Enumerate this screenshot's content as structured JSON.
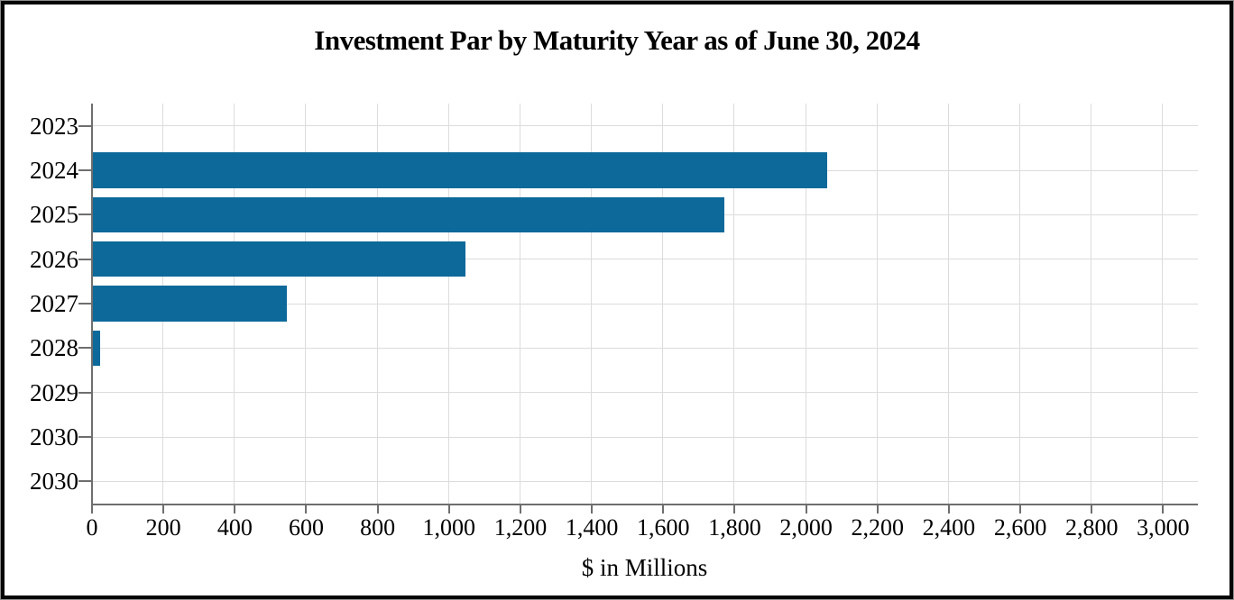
{
  "title": "Investment Par by Maturity Year as of June 30, 2024",
  "chart_data": {
    "type": "bar",
    "orientation": "horizontal",
    "title": "Investment Par by Maturity Year as of June 30, 2024",
    "xlabel": "$ in Millions",
    "ylabel": "",
    "categories": [
      "2023",
      "2024",
      "2025",
      "2026",
      "2027",
      "2028",
      "2029",
      "2030",
      "2030"
    ],
    "values": [
      0,
      2056,
      1768,
      1044,
      543,
      20,
      0,
      0,
      0
    ],
    "xlim": [
      0,
      3100
    ],
    "x_ticks": [
      0,
      200,
      400,
      600,
      800,
      1000,
      1200,
      1400,
      1600,
      1800,
      2000,
      2200,
      2400,
      2600,
      2800,
      3000
    ],
    "x_tick_labels": [
      "0",
      "200",
      "400",
      "600",
      "800",
      "1,000",
      "1,200",
      "1,400",
      "1,600",
      "1,800",
      "2,000",
      "2,200",
      "2,400",
      "2,600",
      "2,800",
      "3,000"
    ],
    "grid": true,
    "legend": false,
    "colors": {
      "bar": "#0D699A",
      "gridline": "#DCDCDC",
      "axis": "#6E6E6E",
      "text": "#000000",
      "border": "#050505"
    }
  }
}
